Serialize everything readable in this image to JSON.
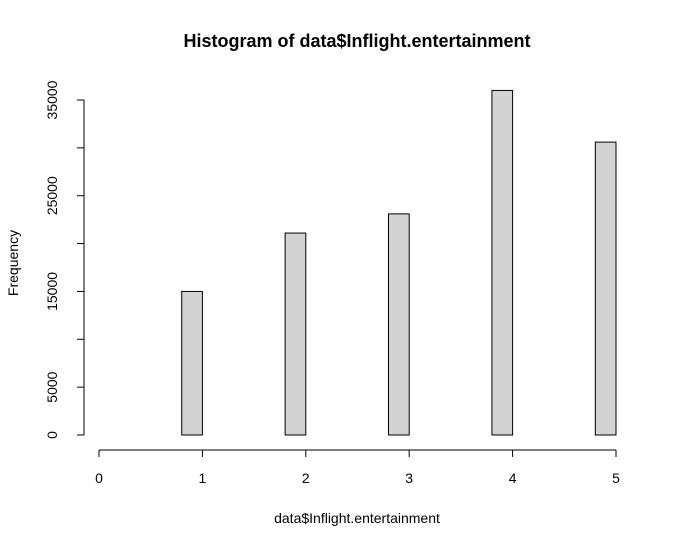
{
  "chart_data": {
    "type": "bar",
    "title": "Histogram of data$Inflight.entertainment",
    "xlabel": "data$Inflight.entertainment",
    "ylabel": "Frequency",
    "xlim": [
      0,
      5
    ],
    "ylim": [
      0,
      35000
    ],
    "x_ticks": [
      "0",
      "1",
      "2",
      "3",
      "4",
      "5"
    ],
    "y_ticks": [
      "0",
      "5000",
      "15000",
      "25000",
      "35000"
    ],
    "bins": [
      {
        "start": 0.0,
        "end": 0.2,
        "value": 0
      },
      {
        "start": 0.2,
        "end": 0.4,
        "value": 0
      },
      {
        "start": 0.4,
        "end": 0.6,
        "value": 0
      },
      {
        "start": 0.6,
        "end": 0.8,
        "value": 0
      },
      {
        "start": 0.8,
        "end": 1.0,
        "value": 15000
      },
      {
        "start": 1.0,
        "end": 1.2,
        "value": 0
      },
      {
        "start": 1.2,
        "end": 1.4,
        "value": 0
      },
      {
        "start": 1.4,
        "end": 1.6,
        "value": 0
      },
      {
        "start": 1.6,
        "end": 1.8,
        "value": 0
      },
      {
        "start": 1.8,
        "end": 2.0,
        "value": 21100
      },
      {
        "start": 2.0,
        "end": 2.2,
        "value": 0
      },
      {
        "start": 2.2,
        "end": 2.4,
        "value": 0
      },
      {
        "start": 2.4,
        "end": 2.6,
        "value": 0
      },
      {
        "start": 2.6,
        "end": 2.8,
        "value": 0
      },
      {
        "start": 2.8,
        "end": 3.0,
        "value": 23100
      },
      {
        "start": 3.0,
        "end": 3.2,
        "value": 0
      },
      {
        "start": 3.2,
        "end": 3.4,
        "value": 0
      },
      {
        "start": 3.4,
        "end": 3.6,
        "value": 0
      },
      {
        "start": 3.6,
        "end": 3.8,
        "value": 0
      },
      {
        "start": 3.8,
        "end": 4.0,
        "value": 36000
      },
      {
        "start": 4.0,
        "end": 4.2,
        "value": 0
      },
      {
        "start": 4.2,
        "end": 4.4,
        "value": 0
      },
      {
        "start": 4.4,
        "end": 4.6,
        "value": 0
      },
      {
        "start": 4.6,
        "end": 4.8,
        "value": 0
      },
      {
        "start": 4.8,
        "end": 5.0,
        "value": 30600
      }
    ],
    "bar_fill": "#d3d3d3",
    "bar_stroke": "#000000",
    "grid": false,
    "legend": "none"
  }
}
